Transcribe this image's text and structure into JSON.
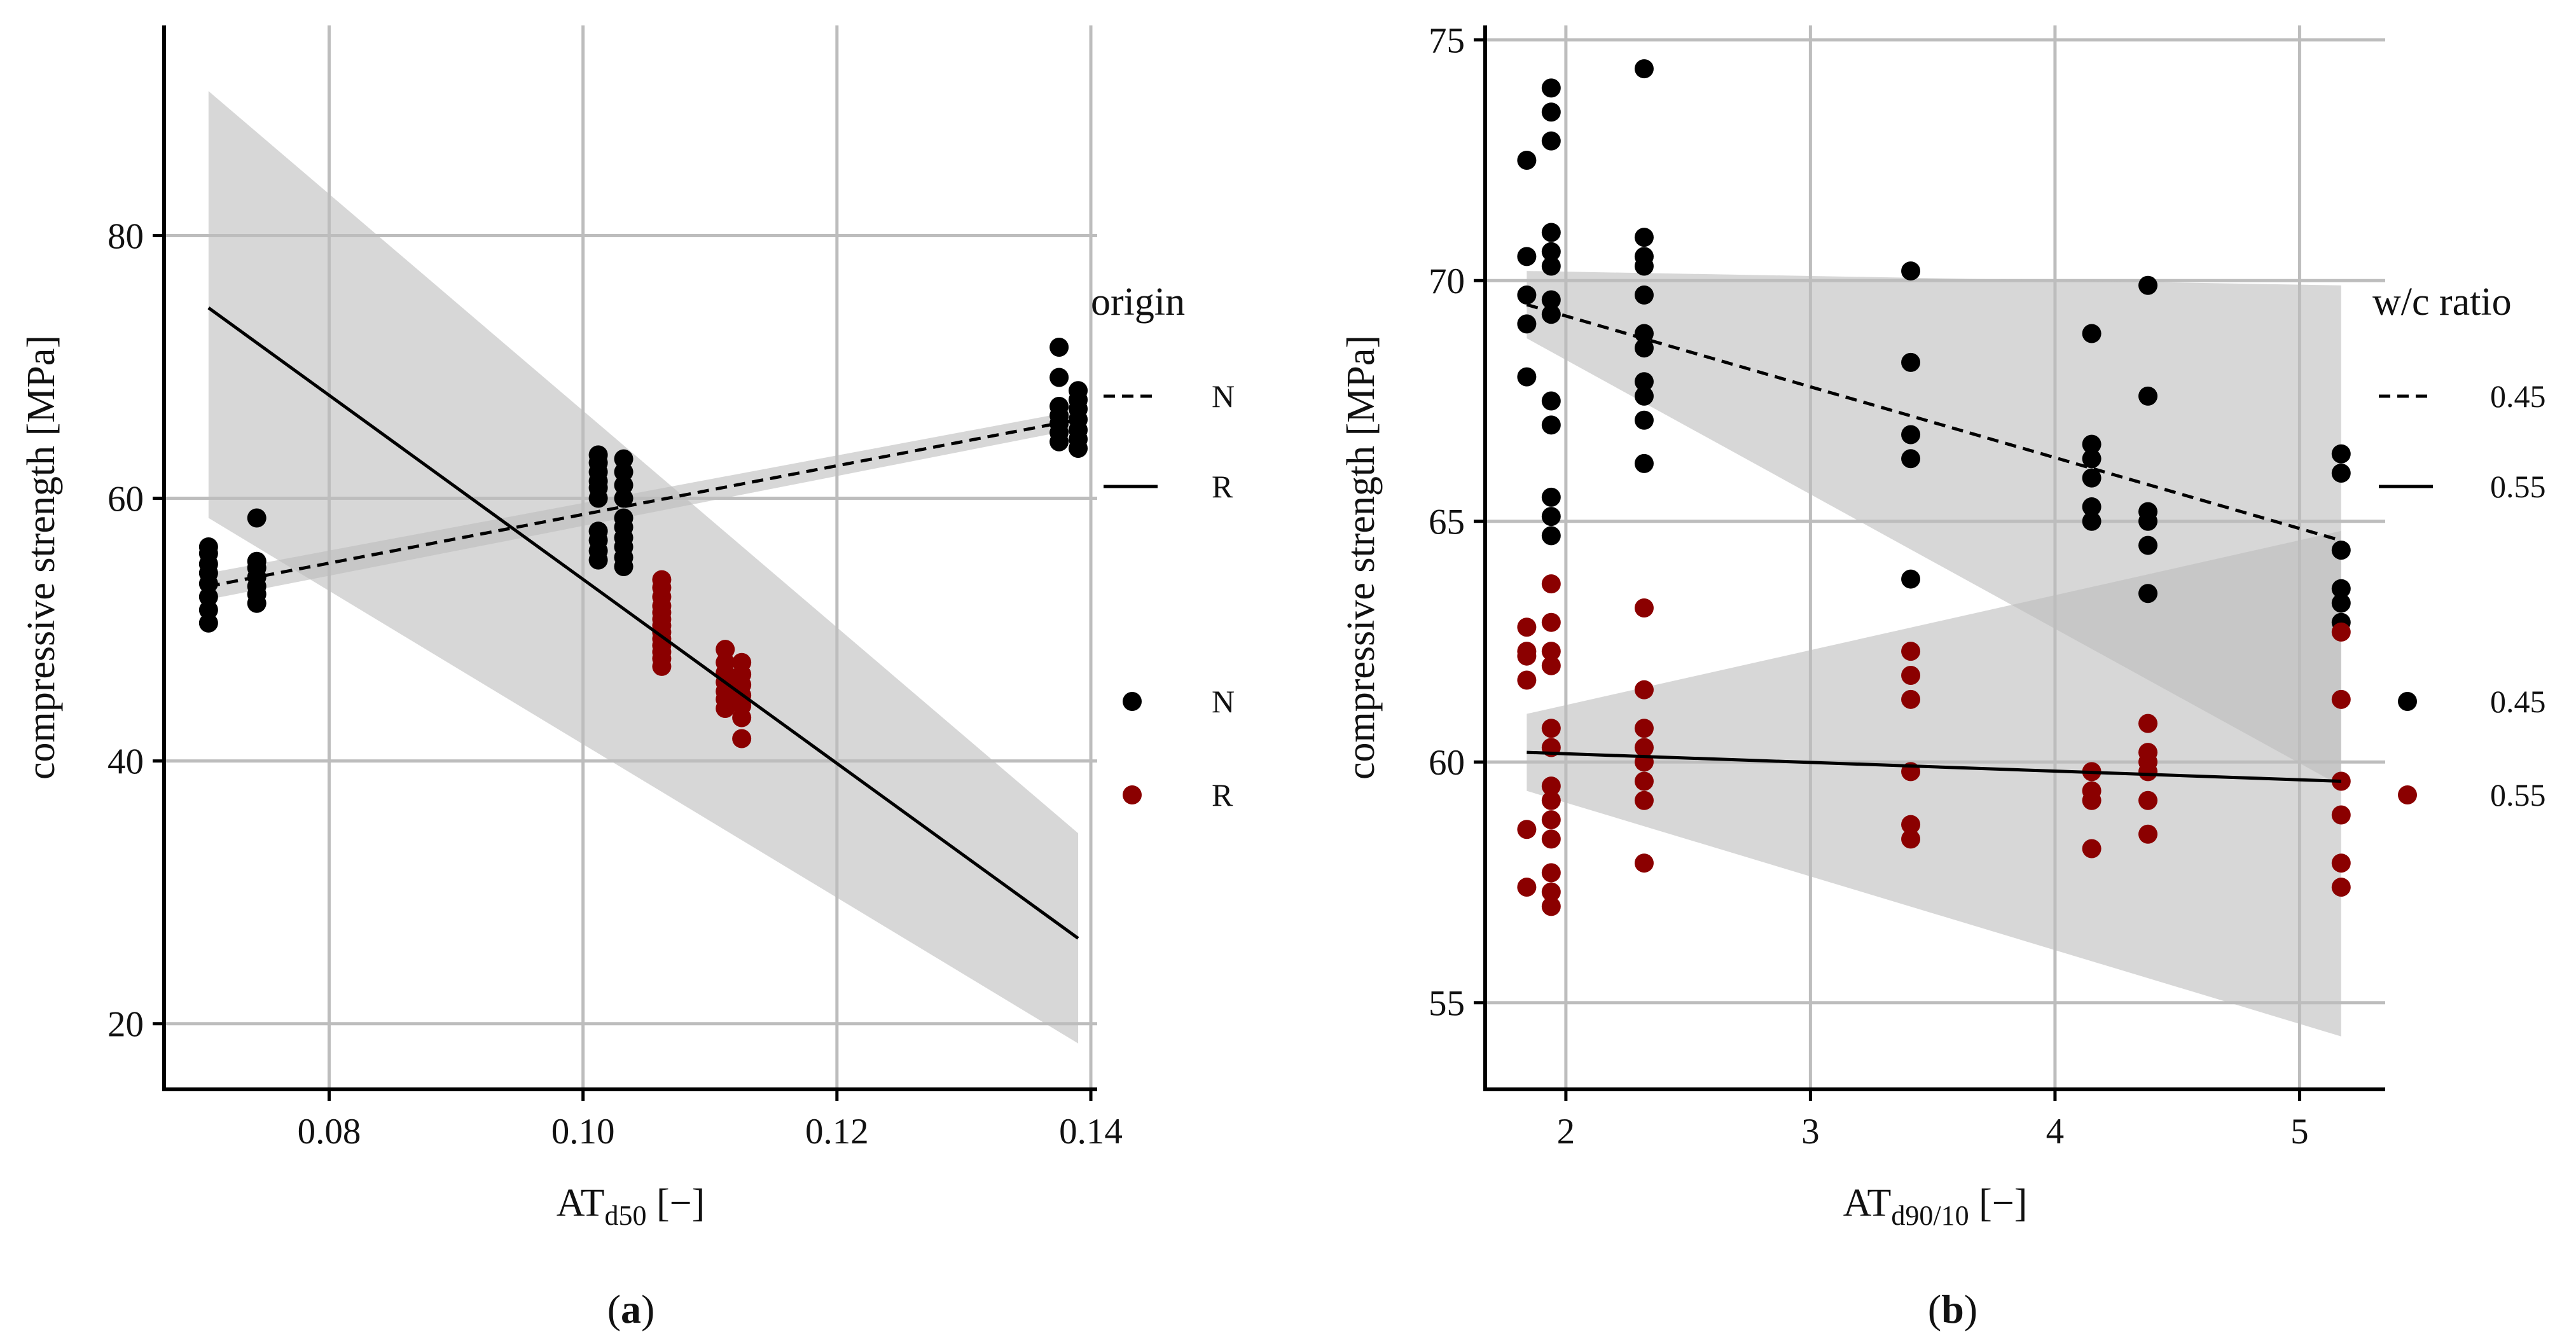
{
  "chart_data": [
    {
      "type": "scatter",
      "panel_label": "a",
      "panel_label_display": "(a)",
      "xlabel_main": "AT",
      "xlabel_sub": "d50",
      "xlabel_suffix": " [−]",
      "ylabel": "compressive strength [MPa]",
      "xlim": [
        0.067,
        0.1405
      ],
      "ylim": [
        15,
        96
      ],
      "xticks": [
        0.08,
        0.1,
        0.12,
        0.14
      ],
      "xtick_labels": [
        "0.08",
        "0.10",
        "0.12",
        "0.14"
      ],
      "yticks": [
        20,
        40,
        60,
        80
      ],
      "ytick_labels": [
        "20",
        "40",
        "60",
        "80"
      ],
      "grid": true,
      "legend_linetype": {
        "title": "origin",
        "entries": [
          {
            "label": "N",
            "style": "dashed"
          },
          {
            "label": "R",
            "style": "solid"
          }
        ]
      },
      "legend_color": {
        "entries": [
          {
            "label": "N",
            "color": "#000000"
          },
          {
            "label": "R",
            "color": "#8b0000"
          }
        ]
      },
      "series": [
        {
          "name": "N",
          "color": "#000000",
          "points": [
            [
              0.0705,
              50.5
            ],
            [
              0.0705,
              51.5
            ],
            [
              0.0705,
              52.5
            ],
            [
              0.0705,
              53.5
            ],
            [
              0.0705,
              54.3
            ],
            [
              0.0705,
              55.0
            ],
            [
              0.0705,
              55.8
            ],
            [
              0.0705,
              56.3
            ],
            [
              0.0743,
              52.0
            ],
            [
              0.0743,
              52.7
            ],
            [
              0.0743,
              53.3
            ],
            [
              0.0743,
              54.0
            ],
            [
              0.0743,
              54.7
            ],
            [
              0.0743,
              55.2
            ],
            [
              0.0743,
              58.5
            ],
            [
              0.1012,
              55.3
            ],
            [
              0.1012,
              56.0
            ],
            [
              0.1012,
              56.8
            ],
            [
              0.1012,
              57.5
            ],
            [
              0.1012,
              60.0
            ],
            [
              0.1012,
              60.8
            ],
            [
              0.1012,
              61.3
            ],
            [
              0.1012,
              62.0
            ],
            [
              0.1012,
              62.7
            ],
            [
              0.1012,
              63.3
            ],
            [
              0.1032,
              54.8
            ],
            [
              0.1032,
              55.5
            ],
            [
              0.1032,
              56.3
            ],
            [
              0.1032,
              57.0
            ],
            [
              0.1032,
              57.8
            ],
            [
              0.1032,
              58.5
            ],
            [
              0.1032,
              60.0
            ],
            [
              0.1032,
              61.0
            ],
            [
              0.1032,
              62.0
            ],
            [
              0.1032,
              63.0
            ],
            [
              0.1375,
              64.3
            ],
            [
              0.1375,
              65.0
            ],
            [
              0.1375,
              65.7
            ],
            [
              0.1375,
              66.3
            ],
            [
              0.1375,
              67.0
            ],
            [
              0.1375,
              69.2
            ],
            [
              0.1375,
              71.5
            ],
            [
              0.139,
              63.8
            ],
            [
              0.139,
              64.5
            ],
            [
              0.139,
              65.2
            ],
            [
              0.139,
              66.0
            ],
            [
              0.139,
              66.8
            ],
            [
              0.139,
              67.5
            ],
            [
              0.139,
              68.2
            ]
          ]
        },
        {
          "name": "R",
          "color": "#8b0000",
          "points": [
            [
              0.1062,
              47.2
            ],
            [
              0.1062,
              47.8
            ],
            [
              0.1062,
              48.3
            ],
            [
              0.1062,
              48.8
            ],
            [
              0.1062,
              49.3
            ],
            [
              0.1062,
              49.8
            ],
            [
              0.1062,
              50.3
            ],
            [
              0.1062,
              50.8
            ],
            [
              0.1062,
              51.3
            ],
            [
              0.1062,
              51.8
            ],
            [
              0.1062,
              52.5
            ],
            [
              0.1062,
              53.2
            ],
            [
              0.1062,
              53.8
            ],
            [
              0.1112,
              44.0
            ],
            [
              0.1112,
              44.7
            ],
            [
              0.1112,
              45.3
            ],
            [
              0.1112,
              46.0
            ],
            [
              0.1112,
              46.7
            ],
            [
              0.1112,
              47.5
            ],
            [
              0.1112,
              48.5
            ],
            [
              0.1125,
              41.7
            ],
            [
              0.1125,
              43.3
            ],
            [
              0.1125,
              44.2
            ],
            [
              0.1125,
              45.0
            ],
            [
              0.1125,
              45.8
            ],
            [
              0.1125,
              46.6
            ],
            [
              0.1125,
              47.5
            ]
          ]
        }
      ],
      "fits": [
        {
          "name": "N",
          "style": "dashed",
          "x": [
            0.0705,
            0.139
          ],
          "y": [
            53.3,
            66.0
          ],
          "ci_low": [
            52.3,
            65.3
          ],
          "ci_high": [
            54.3,
            66.7
          ]
        },
        {
          "name": "R",
          "style": "solid",
          "x": [
            0.0705,
            0.139
          ],
          "y": [
            74.5,
            26.5
          ],
          "ci_low": [
            58.5,
            18.5
          ],
          "ci_high": [
            91.0,
            34.5
          ]
        }
      ]
    },
    {
      "type": "scatter",
      "panel_label": "b",
      "panel_label_display": "(b)",
      "xlabel_main": "AT",
      "xlabel_sub": "d90/10",
      "xlabel_suffix": " [−]",
      "ylabel": "compressive strength [MPa]",
      "xlim": [
        1.67,
        5.35
      ],
      "ylim": [
        53.2,
        75.3
      ],
      "xticks": [
        2,
        3,
        4,
        5
      ],
      "xtick_labels": [
        "2",
        "3",
        "4",
        "5"
      ],
      "yticks": [
        55,
        60,
        65,
        70,
        75
      ],
      "ytick_labels": [
        "55",
        "60",
        "65",
        "70",
        "75"
      ],
      "grid": true,
      "legend_linetype": {
        "title": "w/c ratio",
        "entries": [
          {
            "label": "0.45",
            "style": "dashed"
          },
          {
            "label": "0.55",
            "style": "solid"
          }
        ]
      },
      "legend_color": {
        "entries": [
          {
            "label": "0.45",
            "color": "#000000"
          },
          {
            "label": "0.55",
            "color": "#8b0000"
          }
        ]
      },
      "series": [
        {
          "name": "0.45",
          "color": "#000000",
          "points": [
            [
              1.84,
              68.0
            ],
            [
              1.84,
              69.1
            ],
            [
              1.84,
              69.7
            ],
            [
              1.84,
              70.5
            ],
            [
              1.84,
              72.5
            ],
            [
              1.94,
              64.7
            ],
            [
              1.94,
              65.1
            ],
            [
              1.94,
              65.5
            ],
            [
              1.94,
              67.0
            ],
            [
              1.94,
              67.5
            ],
            [
              1.94,
              69.3
            ],
            [
              1.94,
              69.6
            ],
            [
              1.94,
              70.3
            ],
            [
              1.94,
              70.6
            ],
            [
              1.94,
              71.0
            ],
            [
              1.94,
              72.9
            ],
            [
              1.94,
              73.5
            ],
            [
              1.94,
              74.0
            ],
            [
              2.32,
              66.2
            ],
            [
              2.32,
              67.1
            ],
            [
              2.32,
              67.6
            ],
            [
              2.32,
              67.9
            ],
            [
              2.32,
              68.6
            ],
            [
              2.32,
              68.9
            ],
            [
              2.32,
              69.7
            ],
            [
              2.32,
              70.3
            ],
            [
              2.32,
              70.5
            ],
            [
              2.32,
              70.9
            ],
            [
              2.32,
              74.4
            ],
            [
              3.41,
              63.8
            ],
            [
              3.41,
              66.3
            ],
            [
              3.41,
              66.8
            ],
            [
              3.41,
              68.3
            ],
            [
              3.41,
              70.2
            ],
            [
              4.15,
              65.0
            ],
            [
              4.15,
              65.3
            ],
            [
              4.15,
              65.9
            ],
            [
              4.15,
              66.3
            ],
            [
              4.15,
              66.6
            ],
            [
              4.15,
              68.9
            ],
            [
              4.38,
              63.5
            ],
            [
              4.38,
              64.5
            ],
            [
              4.38,
              65.0
            ],
            [
              4.38,
              65.2
            ],
            [
              4.38,
              67.6
            ],
            [
              4.38,
              69.9
            ],
            [
              5.17,
              62.9
            ],
            [
              5.17,
              63.3
            ],
            [
              5.17,
              63.6
            ],
            [
              5.17,
              64.4
            ],
            [
              5.17,
              66.0
            ],
            [
              5.17,
              66.4
            ]
          ]
        },
        {
          "name": "0.55",
          "color": "#8b0000",
          "points": [
            [
              1.84,
              57.4
            ],
            [
              1.84,
              58.6
            ],
            [
              1.84,
              61.7
            ],
            [
              1.84,
              62.2
            ],
            [
              1.84,
              62.3
            ],
            [
              1.84,
              62.8
            ],
            [
              1.94,
              57.0
            ],
            [
              1.94,
              57.3
            ],
            [
              1.94,
              57.7
            ],
            [
              1.94,
              58.4
            ],
            [
              1.94,
              58.8
            ],
            [
              1.94,
              59.2
            ],
            [
              1.94,
              59.5
            ],
            [
              1.94,
              60.3
            ],
            [
              1.94,
              60.7
            ],
            [
              1.94,
              62.0
            ],
            [
              1.94,
              62.3
            ],
            [
              1.94,
              62.9
            ],
            [
              1.94,
              63.7
            ],
            [
              2.32,
              57.9
            ],
            [
              2.32,
              59.2
            ],
            [
              2.32,
              59.6
            ],
            [
              2.32,
              60.0
            ],
            [
              2.32,
              60.3
            ],
            [
              2.32,
              60.7
            ],
            [
              2.32,
              61.5
            ],
            [
              2.32,
              63.2
            ],
            [
              3.41,
              58.4
            ],
            [
              3.41,
              58.7
            ],
            [
              3.41,
              59.8
            ],
            [
              3.41,
              61.3
            ],
            [
              3.41,
              61.8
            ],
            [
              3.41,
              62.3
            ],
            [
              4.15,
              58.2
            ],
            [
              4.15,
              59.2
            ],
            [
              4.15,
              59.4
            ],
            [
              4.15,
              59.8
            ],
            [
              4.38,
              58.5
            ],
            [
              4.38,
              59.2
            ],
            [
              4.38,
              59.8
            ],
            [
              4.38,
              60.0
            ],
            [
              4.38,
              60.2
            ],
            [
              4.38,
              60.8
            ],
            [
              5.17,
              57.4
            ],
            [
              5.17,
              57.9
            ],
            [
              5.17,
              58.9
            ],
            [
              5.17,
              59.6
            ],
            [
              5.17,
              61.3
            ],
            [
              5.17,
              62.7
            ]
          ]
        }
      ],
      "fits": [
        {
          "name": "0.45",
          "style": "dashed",
          "x": [
            1.84,
            5.17
          ],
          "y": [
            69.5,
            64.6
          ],
          "ci_low": [
            68.8,
            59.5
          ],
          "ci_high": [
            70.2,
            69.9
          ]
        },
        {
          "name": "0.55",
          "style": "solid",
          "x": [
            1.84,
            5.17
          ],
          "y": [
            60.2,
            59.6
          ],
          "ci_low": [
            59.4,
            54.3
          ],
          "ci_high": [
            61.0,
            64.8
          ]
        }
      ]
    }
  ]
}
